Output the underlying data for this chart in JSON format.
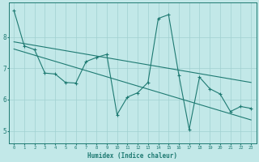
{
  "xlabel": "Humidex (Indice chaleur)",
  "bg_color": "#c2e8e8",
  "line_color": "#1e7a72",
  "grid_color": "#a0d0d0",
  "xlim": [
    -0.5,
    23.5
  ],
  "ylim": [
    4.6,
    9.1
  ],
  "yticks": [
    5,
    6,
    7,
    8
  ],
  "xticks": [
    0,
    1,
    2,
    3,
    4,
    5,
    6,
    7,
    8,
    9,
    10,
    11,
    12,
    13,
    14,
    15,
    16,
    17,
    18,
    19,
    20,
    21,
    22,
    23
  ],
  "series1_x": [
    0,
    1,
    2,
    3,
    4,
    5,
    6,
    7,
    8,
    9,
    10,
    11,
    12,
    13,
    14,
    15,
    16,
    17,
    18,
    19,
    20,
    21,
    22,
    23
  ],
  "series1_y": [
    8.85,
    7.72,
    7.6,
    6.85,
    6.82,
    6.55,
    6.53,
    7.22,
    7.35,
    7.45,
    5.52,
    6.08,
    6.22,
    6.55,
    8.6,
    8.72,
    6.78,
    5.05,
    6.72,
    6.35,
    6.18,
    5.62,
    5.78,
    5.72
  ],
  "series2_x": [
    0,
    23
  ],
  "series2_y": [
    7.85,
    6.55
  ],
  "series3_x": [
    0,
    23
  ],
  "series3_y": [
    7.62,
    5.35
  ]
}
